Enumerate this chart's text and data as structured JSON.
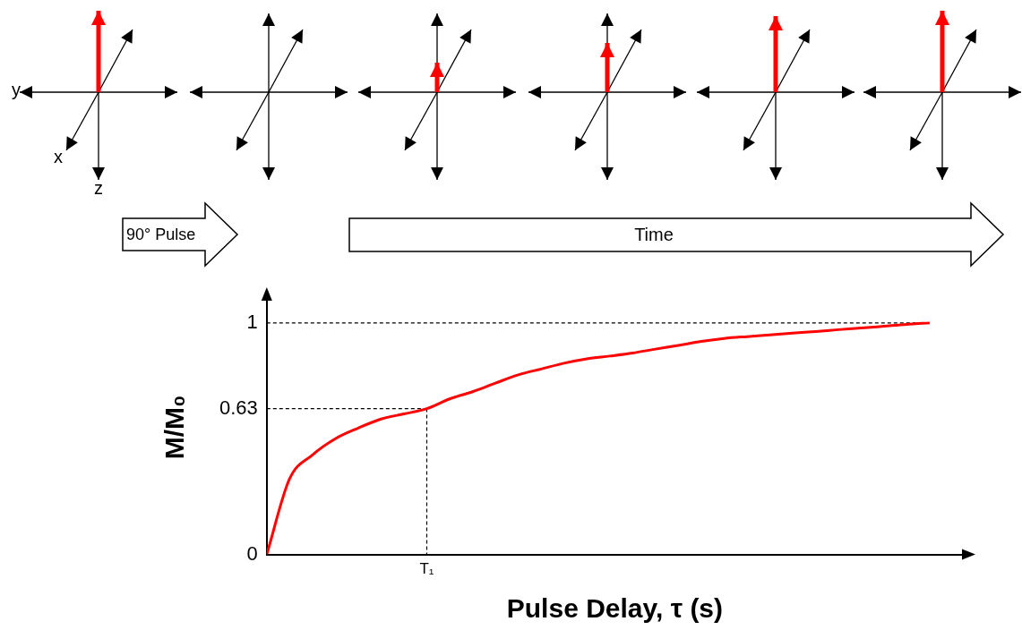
{
  "chart_data": {
    "type": "line",
    "xlabel": "Pulse Delay, τ (s)",
    "ylabel": "M/M₀",
    "categories": [
      null,
      null,
      null,
      null,
      null,
      null,
      null,
      null,
      null,
      null,
      null,
      null,
      null,
      null,
      null,
      null,
      null,
      null,
      null,
      null,
      null,
      null,
      null,
      null,
      null,
      null,
      null,
      null,
      null,
      null
    ],
    "series": [
      {
        "color": "#ff0000",
        "values": [
          0,
          0.327,
          0.43,
          0.5,
          0.546,
          0.585,
          0.607,
          0.63,
          0.672,
          0.703,
          0.74,
          0.776,
          0.801,
          0.826,
          0.845,
          0.857,
          0.87,
          0.887,
          0.903,
          0.92,
          0.933,
          0.941,
          0.948,
          0.956,
          0.963,
          0.971,
          0.978,
          0.986,
          0.994,
          1.0
        ]
      }
    ],
    "ylim": [
      0,
      1.1
    ],
    "yticks": [
      0,
      0.63,
      1
    ],
    "ref_lines": [
      {
        "axis": "y",
        "value": 1,
        "color": "#000000",
        "line_style": "dashed"
      },
      {
        "axis": "y",
        "value": 0.63,
        "color": "#000000",
        "line_style": "dashed"
      }
    ],
    "annotations": [
      "y",
      "x",
      "z",
      "90° Pulse",
      "Time",
      {
        "text": "T₁",
        "y": 0.63
      }
    ],
    "grid": false,
    "legend": false,
    "marker": "none",
    "line_style": "solid"
  }
}
